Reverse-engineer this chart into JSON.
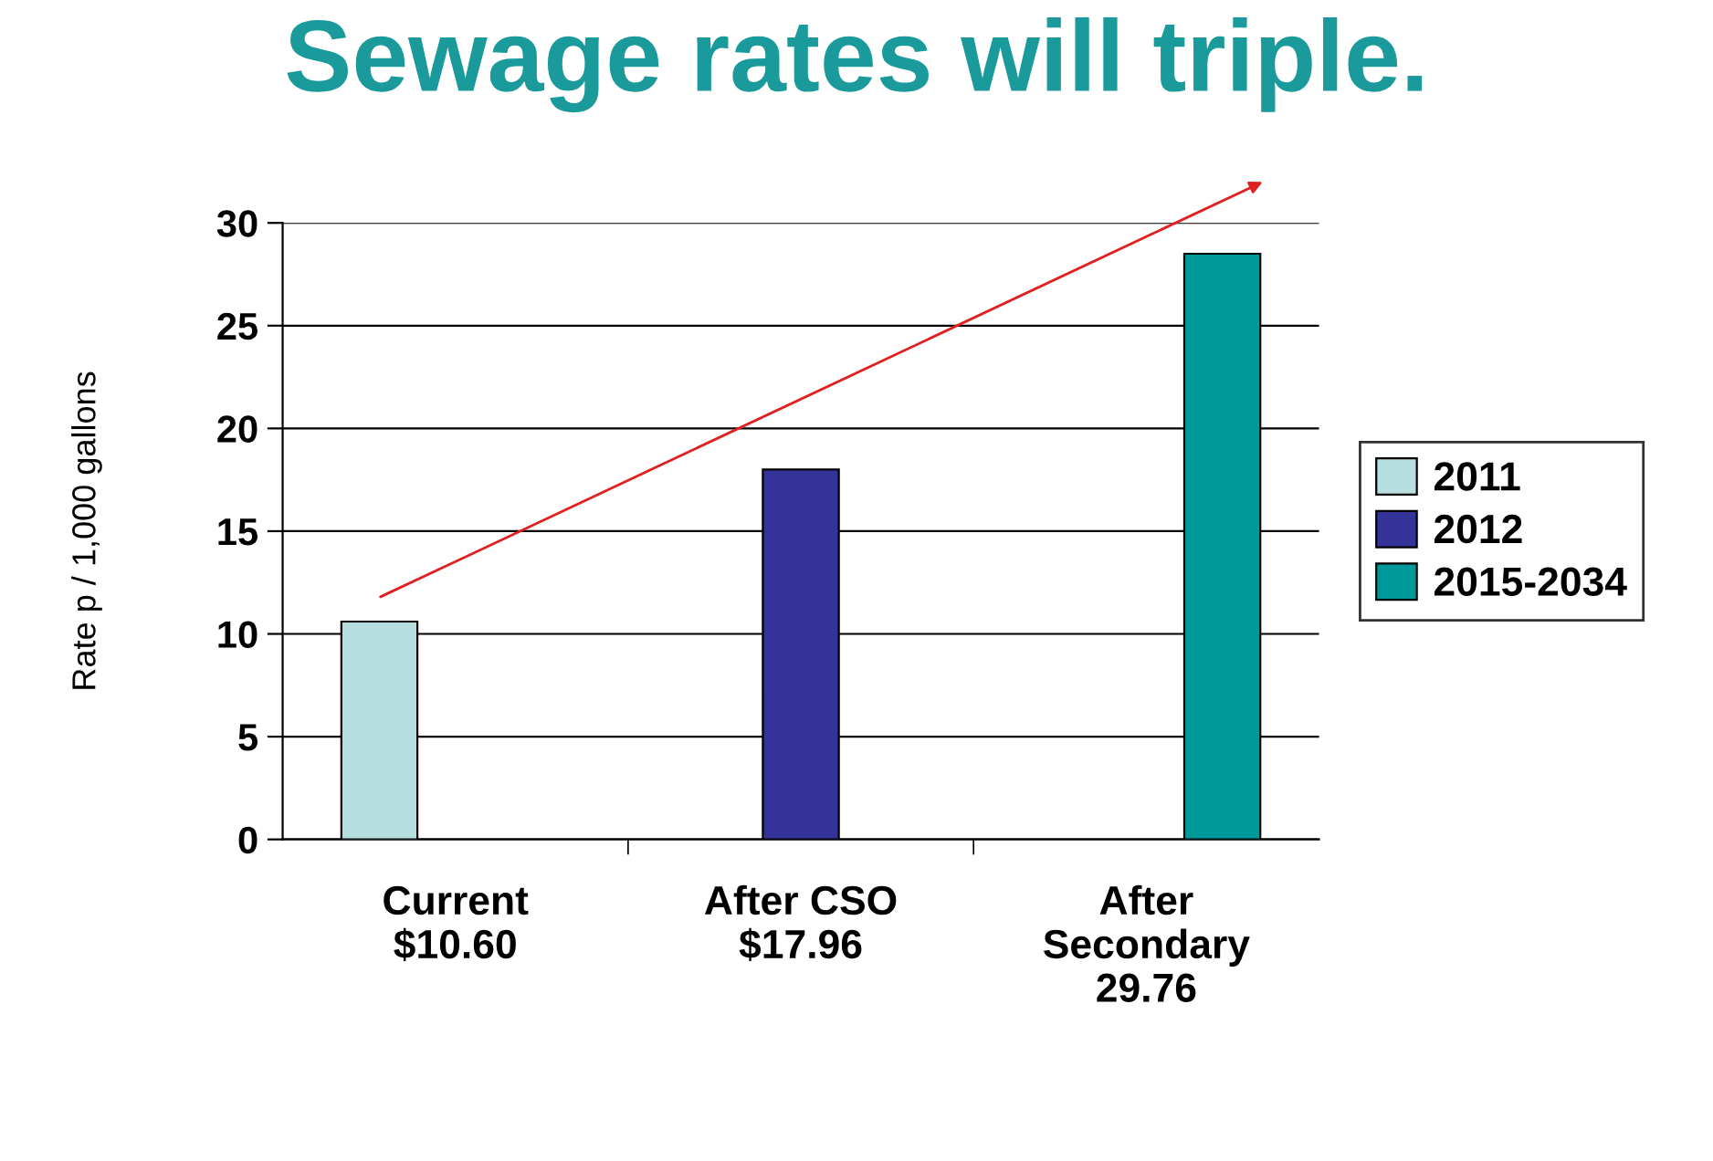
{
  "chart_data": {
    "type": "bar",
    "title": "Sewage rates will triple.",
    "ylabel": "Rate p / 1,000 gallons",
    "categories": [
      "Current\n$10.60",
      "After CSO\n$17.96",
      "After\nSecondary\n29.76"
    ],
    "series": [
      {
        "name": "2011",
        "color": "#b8dfe0",
        "values": [
          10.6,
          null,
          null
        ]
      },
      {
        "name": "2012",
        "color": "#333399",
        "values": [
          null,
          18,
          null
        ]
      },
      {
        "name": "2015-2034",
        "color": "#009999",
        "values": [
          null,
          null,
          28.5
        ]
      }
    ],
    "ylim": [
      0,
      30
    ],
    "yticks": [
      0,
      5,
      10,
      15,
      20,
      25,
      30
    ],
    "grid": "y",
    "legend": "right"
  }
}
